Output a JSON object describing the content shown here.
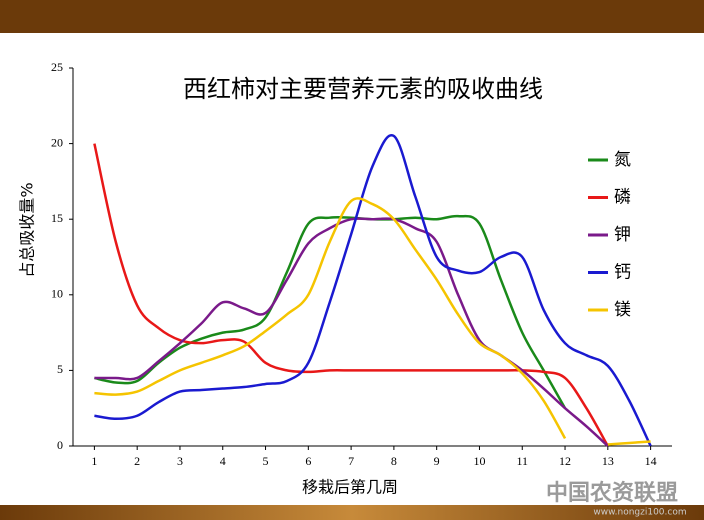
{
  "chart_data": {
    "type": "line",
    "title": "西红柿对主要营养元素的吸收曲线",
    "xlabel": "移栽后第几周",
    "ylabel": "占总吸收量%",
    "watermark": "中国农资联盟",
    "watermark_url": "www.nongzi100.com",
    "x": [
      1,
      1.5,
      2,
      2.5,
      3,
      3.5,
      4,
      4.5,
      5,
      5.5,
      6,
      6.5,
      7,
      7.5,
      8,
      8.5,
      9,
      9.5,
      10,
      10.5,
      11,
      11.5,
      12,
      12.5,
      13,
      13.5,
      14
    ],
    "xlim": [
      0.5,
      14.5
    ],
    "xticks": [
      1,
      2,
      3,
      4,
      5,
      6,
      7,
      8,
      9,
      10,
      11,
      12,
      13,
      14
    ],
    "ylim": [
      0,
      25
    ],
    "yticks": [
      0,
      5,
      10,
      15,
      20,
      25
    ],
    "series": [
      {
        "name": "氮",
        "color": "#1a8a1a",
        "values": [
          4.5,
          4.2,
          4.3,
          5.5,
          6.5,
          7.1,
          7.5,
          7.7,
          8.5,
          11.5,
          14.7,
          15.1,
          15.1,
          15,
          15,
          15.1,
          15,
          15.2,
          14.7,
          11,
          7.5,
          5,
          2.5,
          null,
          null,
          null,
          null
        ]
      },
      {
        "name": "磷",
        "color": "#e81818",
        "values": [
          20,
          13.5,
          9.3,
          7.8,
          7,
          6.8,
          7,
          6.9,
          5.5,
          5,
          4.9,
          5,
          5,
          5,
          5,
          5,
          5,
          5,
          5,
          5,
          5,
          4.9,
          4.5,
          2.5,
          0,
          null,
          null
        ]
      },
      {
        "name": "钾",
        "color": "#7a1a8a",
        "values": [
          4.5,
          4.5,
          4.5,
          5.6,
          6.8,
          8.1,
          9.5,
          9.1,
          8.8,
          11,
          13.4,
          14.4,
          15,
          15,
          15,
          14.4,
          13.5,
          10,
          7,
          6,
          5,
          3.8,
          2.5,
          1.3,
          0,
          null,
          null
        ]
      },
      {
        "name": "钙",
        "color": "#1a1ad0",
        "values": [
          2,
          1.8,
          2,
          2.9,
          3.6,
          3.7,
          3.8,
          3.9,
          4.1,
          4.3,
          5.5,
          9.5,
          14,
          18.5,
          20.5,
          16.5,
          12.5,
          11.6,
          11.5,
          12.5,
          12.5,
          9,
          6.8,
          6,
          5.3,
          3,
          0
        ]
      },
      {
        "name": "镁",
        "color": "#f5c400",
        "values": [
          3.5,
          3.4,
          3.6,
          4.3,
          5,
          5.5,
          6,
          6.6,
          7.6,
          8.7,
          10,
          13.5,
          16.2,
          16,
          15,
          13,
          11,
          8.7,
          6.8,
          6,
          4.8,
          3,
          0.5,
          null,
          0.1,
          0.2,
          0.3
        ]
      }
    ]
  }
}
